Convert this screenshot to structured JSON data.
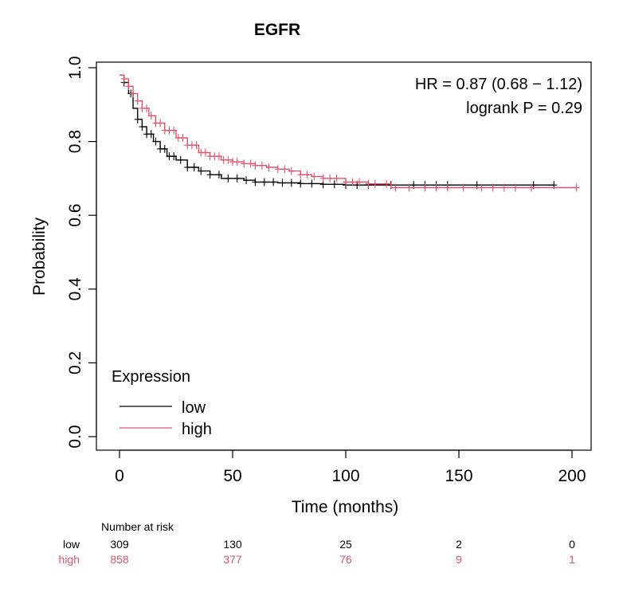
{
  "chart_data": {
    "type": "line",
    "subtype": "kaplan-meier",
    "title": "EGFR",
    "xlabel": "Time (months)",
    "ylabel": "Probability",
    "xlim": [
      0,
      200
    ],
    "ylim": [
      0,
      1
    ],
    "xticks": [
      0,
      50,
      100,
      150,
      200
    ],
    "yticks": [
      "0.0",
      "0.2",
      "0.4",
      "0.6",
      "0.8",
      "1.0"
    ],
    "grid": false,
    "annotations": [
      "HR = 0.87 (0.68 − 1.12)",
      "logrank P = 0.29"
    ],
    "legend": {
      "title": "Expression",
      "position": "bottom-left",
      "entries": [
        {
          "label": "low",
          "color": "#000000"
        },
        {
          "label": "high",
          "color": "#df536b"
        }
      ]
    },
    "series": [
      {
        "name": "low",
        "color": "#000000",
        "x": [
          0,
          2,
          4,
          6,
          8,
          10,
          12,
          15,
          18,
          21,
          25,
          30,
          35,
          40,
          45,
          50,
          55,
          60,
          70,
          80,
          90,
          100,
          120,
          150,
          180,
          192
        ],
        "y": [
          0.98,
          0.96,
          0.93,
          0.89,
          0.86,
          0.84,
          0.82,
          0.8,
          0.78,
          0.76,
          0.75,
          0.73,
          0.72,
          0.71,
          0.7,
          0.7,
          0.695,
          0.69,
          0.688,
          0.686,
          0.684,
          0.682,
          0.682,
          0.682,
          0.682,
          0.682
        ],
        "censor_x": [
          2,
          5,
          8,
          10,
          12,
          14,
          16,
          18,
          20,
          22,
          24,
          27,
          30,
          33,
          36,
          40,
          44,
          48,
          52,
          56,
          60,
          64,
          68,
          72,
          76,
          80,
          85,
          90,
          95,
          100,
          105,
          110,
          120,
          130,
          135,
          140,
          145,
          158,
          183,
          192
        ]
      },
      {
        "name": "high",
        "color": "#df536b",
        "x": [
          0,
          2,
          4,
          6,
          8,
          10,
          13,
          16,
          20,
          25,
          30,
          35,
          40,
          45,
          50,
          55,
          60,
          65,
          70,
          75,
          80,
          85,
          90,
          100,
          110,
          120,
          150,
          180,
          202
        ],
        "y": [
          0.98,
          0.97,
          0.95,
          0.93,
          0.91,
          0.89,
          0.87,
          0.85,
          0.83,
          0.81,
          0.79,
          0.77,
          0.76,
          0.75,
          0.745,
          0.74,
          0.735,
          0.73,
          0.725,
          0.72,
          0.71,
          0.705,
          0.7,
          0.69,
          0.685,
          0.675,
          0.675,
          0.675,
          0.675
        ],
        "censor_x": [
          2,
          4,
          6,
          8,
          10,
          12,
          14,
          16,
          18,
          20,
          22,
          24,
          26,
          28,
          30,
          32,
          34,
          36,
          38,
          40,
          42,
          44,
          46,
          48,
          50,
          52,
          55,
          58,
          60,
          63,
          66,
          70,
          73,
          76,
          80,
          83,
          86,
          90,
          93,
          96,
          100,
          103,
          106,
          110,
          113,
          118,
          122,
          128,
          135,
          140,
          145,
          152,
          160,
          165,
          170,
          175,
          182,
          202
        ]
      }
    ],
    "risk_table": {
      "title": "Number at risk",
      "times": [
        0,
        50,
        100,
        150,
        200
      ],
      "rows": [
        {
          "label": "low",
          "color": "#000000",
          "values": [
            "309",
            "130",
            "25",
            "2",
            "0"
          ]
        },
        {
          "label": "high",
          "color": "#df536b",
          "values": [
            "858",
            "377",
            "76",
            "9",
            "1"
          ]
        }
      ]
    }
  }
}
